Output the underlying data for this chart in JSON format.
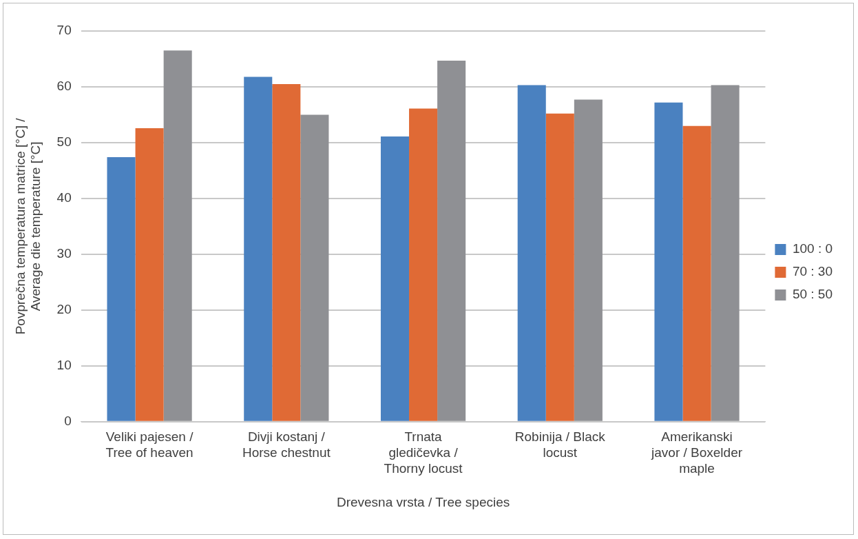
{
  "chart_data": {
    "type": "bar",
    "xlabel": "Drevesna vrsta / Tree species",
    "ylabel": "Povprečna temperatura matrice [°C] / Average die temperature [°C]",
    "categories": [
      "Veliki pajesen / Tree of heaven",
      "Divji kostanj / Horse chestnut",
      "Trnata gledičevka / Thorny locust",
      "Robinija / Black locust",
      "Amerikanski javor / Boxelder maple"
    ],
    "series": [
      {
        "name": "100 : 0",
        "color": "#4a81c0",
        "values": [
          47.4,
          61.8,
          51.1,
          60.3,
          57.2
        ]
      },
      {
        "name": "70 : 30",
        "color": "#e06a35",
        "values": [
          52.6,
          60.5,
          56.1,
          55.2,
          53.0
        ]
      },
      {
        "name": "50 : 50",
        "color": "#8f9094",
        "values": [
          66.5,
          55.0,
          64.7,
          57.7,
          60.3
        ]
      }
    ],
    "ylim": [
      0,
      70
    ],
    "yticks": [
      0,
      10,
      20,
      30,
      40,
      50,
      60,
      70
    ],
    "grid": "y",
    "legend": "right"
  }
}
